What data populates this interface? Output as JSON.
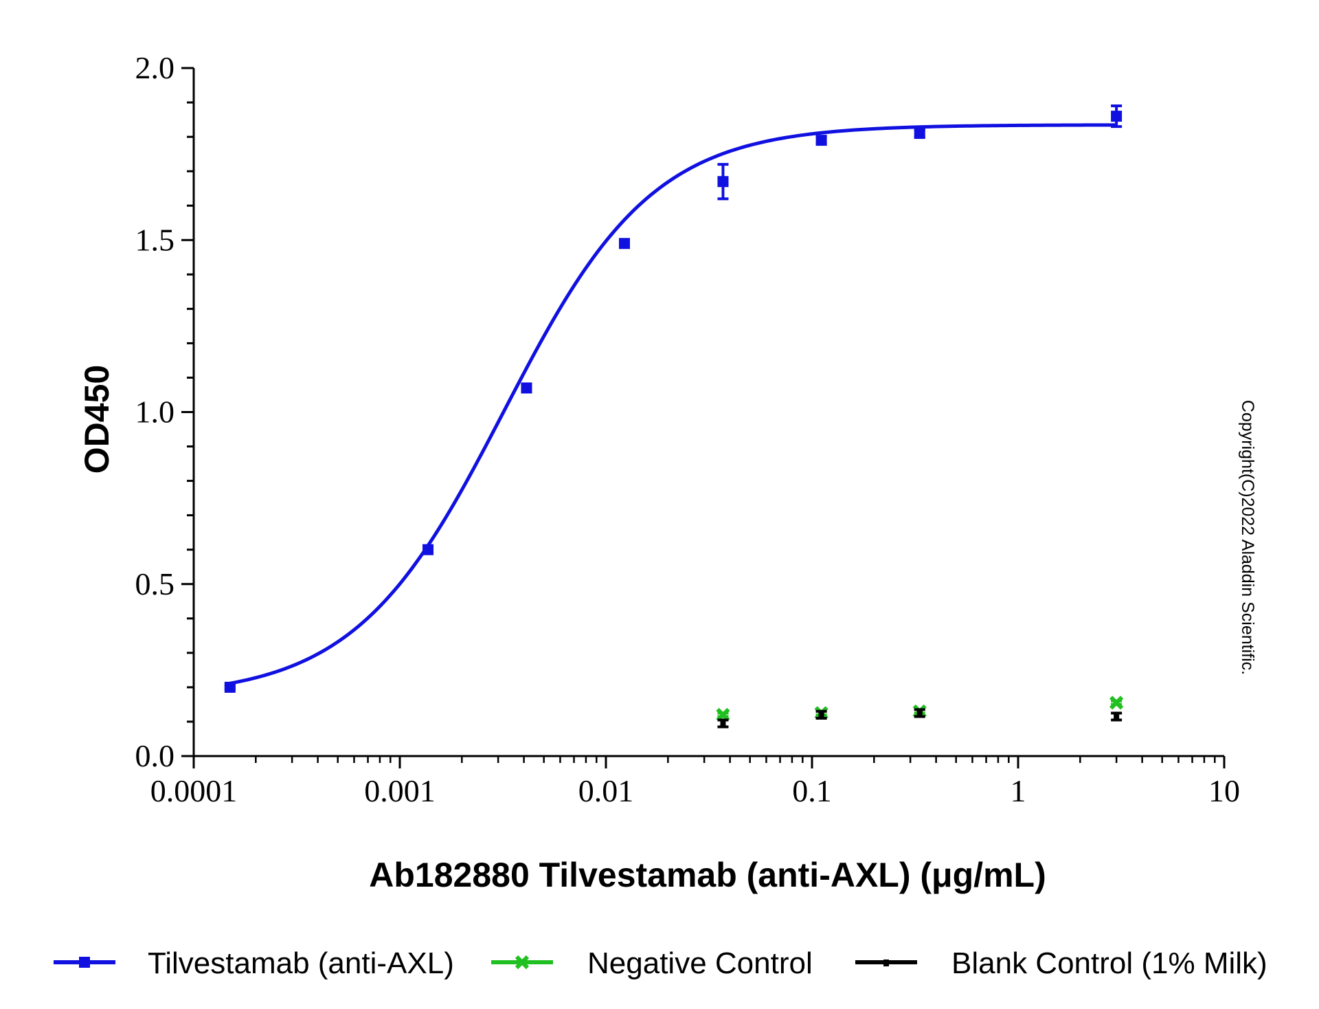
{
  "chart_data": {
    "type": "scatter",
    "xlabel": "Ab182880 Tilvestamab (anti-AXL) (μg/mL)",
    "ylabel": "OD450",
    "x_scale": "log",
    "xlim": [
      0.0001,
      10
    ],
    "ylim": [
      0,
      2.0
    ],
    "x_ticks": [
      {
        "value": 0.0001,
        "label": "0.0001"
      },
      {
        "value": 0.001,
        "label": "0.001"
      },
      {
        "value": 0.01,
        "label": "0.01"
      },
      {
        "value": 0.1,
        "label": "0.1"
      },
      {
        "value": 1,
        "label": "1"
      },
      {
        "value": 10,
        "label": "10"
      }
    ],
    "y_ticks": [
      {
        "value": 0,
        "label": "0.0"
      },
      {
        "value": 0.5,
        "label": "0.5"
      },
      {
        "value": 1.0,
        "label": "1.0"
      },
      {
        "value": 1.5,
        "label": "1.5"
      },
      {
        "value": 2.0,
        "label": "2.0"
      }
    ],
    "grid": false,
    "legend_position": "bottom",
    "watermark": "Copyright(C)2022 Aladdin Scientific.",
    "series": [
      {
        "name": "Tilvestamab (anti-AXL)",
        "color": "#1010e0",
        "marker": "square",
        "fit_curve": true,
        "x": [
          0.00015,
          0.00137,
          0.00412,
          0.0123,
          0.037,
          0.111,
          0.333,
          3.0
        ],
        "y": [
          0.2,
          0.6,
          1.07,
          1.49,
          1.67,
          1.79,
          1.81,
          1.86
        ],
        "err": [
          0.005,
          0.01,
          0.01,
          0.01,
          0.05,
          0.01,
          0.01,
          0.03
        ]
      },
      {
        "name": "Negative Control",
        "color": "#20c020",
        "marker": "x",
        "fit_curve": false,
        "x": [
          0.037,
          0.111,
          0.333,
          3.0
        ],
        "y": [
          0.12,
          0.125,
          0.13,
          0.155
        ],
        "err": [
          0.005,
          0.005,
          0.005,
          0.005
        ]
      },
      {
        "name": "Blank Control (1% Milk)",
        "color": "#000000",
        "marker": "bar",
        "fit_curve": false,
        "x": [
          0.037,
          0.111,
          0.333,
          3.0
        ],
        "y": [
          0.095,
          0.12,
          0.125,
          0.115
        ],
        "err": [
          0.01,
          0.01,
          0.01,
          0.01
        ]
      }
    ]
  }
}
